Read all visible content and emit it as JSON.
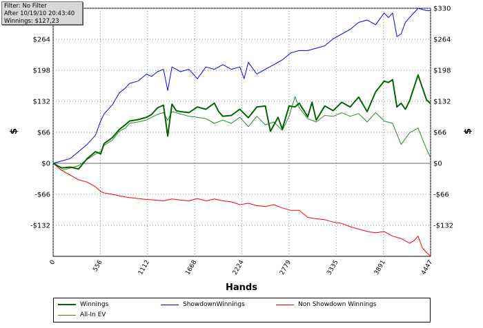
{
  "info_box": {
    "filter": "Filter: No Filter",
    "after": "After 10/19/10 20:43:40",
    "winnings": "Winnings: $127,23"
  },
  "colors": {
    "winnings": "#006400",
    "showdown": "#0000ff",
    "non_showdown": "#ff0000",
    "allin_ev": "#228b22",
    "grid": "#808080",
    "zero_line": "#606060"
  },
  "chart_data": {
    "type": "line",
    "title": "",
    "xlabel": "Hands",
    "ylabel": "$",
    "xlim": [
      0,
      4447
    ],
    "ylim": [
      -198,
      330
    ],
    "x_ticks": [
      0,
      556,
      1112,
      1668,
      2224,
      2779,
      3335,
      3891,
      4447
    ],
    "x_tick_labels": [
      "0",
      "556",
      "1112",
      "1668",
      "2224",
      "2779",
      "3335",
      "3891",
      "4447"
    ],
    "y_ticks": [
      330,
      264,
      198,
      132,
      66,
      0,
      -66,
      -132
    ],
    "y_tick_labels": [
      "$330",
      "$264",
      "$198",
      "$132",
      "$66",
      "$0",
      "-$66",
      "-$132"
    ],
    "grid": true,
    "legend_position": "bottom",
    "series": [
      {
        "name": "Winnings",
        "x": [
          0,
          100,
          200,
          300,
          400,
          500,
          560,
          600,
          700,
          780,
          850,
          900,
          1000,
          1100,
          1160,
          1230,
          1300,
          1350,
          1400,
          1450,
          1500,
          1600,
          1700,
          1800,
          1900,
          1950,
          2000,
          2100,
          2200,
          2300,
          2400,
          2500,
          2560,
          2650,
          2700,
          2780,
          2850,
          2900,
          3000,
          3050,
          3100,
          3200,
          3300,
          3400,
          3500,
          3600,
          3700,
          3800,
          3900,
          3950,
          4000,
          4050,
          4100,
          4150,
          4200,
          4300,
          4400,
          4447
        ],
        "values": [
          0,
          -10,
          -8,
          -12,
          10,
          25,
          20,
          42,
          55,
          72,
          82,
          90,
          93,
          98,
          104,
          118,
          124,
          58,
          126,
          112,
          110,
          108,
          120,
          115,
          128,
          110,
          100,
          102,
          115,
          97,
          120,
          122,
          68,
          98,
          73,
          122,
          120,
          128,
          99,
          130,
          92,
          122,
          112,
          130,
          120,
          141,
          110,
          152,
          175,
          172,
          178,
          120,
          128,
          115,
          133,
          188,
          135,
          127
        ]
      },
      {
        "name": "ShowdownWinnings",
        "x": [
          0,
          100,
          200,
          300,
          400,
          500,
          560,
          600,
          700,
          780,
          850,
          900,
          1000,
          1100,
          1160,
          1230,
          1300,
          1350,
          1400,
          1500,
          1600,
          1700,
          1800,
          1900,
          2000,
          2100,
          2200,
          2250,
          2300,
          2400,
          2500,
          2600,
          2700,
          2800,
          2900,
          3000,
          3100,
          3200,
          3300,
          3400,
          3500,
          3600,
          3700,
          3800,
          3900,
          3950,
          4000,
          4050,
          4100,
          4150,
          4200,
          4300,
          4400,
          4447
        ],
        "values": [
          0,
          5,
          10,
          25,
          40,
          60,
          90,
          105,
          125,
          150,
          160,
          170,
          175,
          190,
          185,
          195,
          200,
          155,
          205,
          195,
          200,
          180,
          205,
          200,
          210,
          200,
          205,
          180,
          215,
          190,
          200,
          210,
          220,
          235,
          240,
          240,
          245,
          250,
          265,
          275,
          285,
          300,
          305,
          295,
          320,
          310,
          320,
          270,
          275,
          300,
          310,
          330,
          325,
          325
        ]
      },
      {
        "name": "Non Showdown Winnings",
        "x": [
          0,
          100,
          200,
          300,
          400,
          500,
          560,
          600,
          700,
          800,
          900,
          1000,
          1100,
          1200,
          1300,
          1400,
          1500,
          1600,
          1700,
          1800,
          1900,
          2000,
          2100,
          2200,
          2300,
          2400,
          2500,
          2600,
          2700,
          2800,
          2900,
          3000,
          3100,
          3200,
          3300,
          3400,
          3500,
          3600,
          3700,
          3800,
          3900,
          4000,
          4100,
          4200,
          4250,
          4300,
          4350,
          4400,
          4447
        ],
        "values": [
          0,
          -15,
          -25,
          -35,
          -40,
          -50,
          -60,
          -63,
          -66,
          -70,
          -73,
          -75,
          -77,
          -78,
          -80,
          -76,
          -78,
          -80,
          -75,
          -80,
          -76,
          -80,
          -82,
          -88,
          -85,
          -90,
          -92,
          -88,
          -95,
          -100,
          -100,
          -115,
          -118,
          -120,
          -125,
          -128,
          -135,
          -140,
          -145,
          -148,
          -145,
          -155,
          -160,
          -170,
          -165,
          -155,
          -180,
          -190,
          -198
        ]
      },
      {
        "name": "All-In EV",
        "x": [
          0,
          100,
          200,
          300,
          400,
          500,
          560,
          600,
          700,
          780,
          850,
          900,
          1000,
          1100,
          1160,
          1230,
          1300,
          1350,
          1400,
          1500,
          1600,
          1700,
          1800,
          1900,
          2000,
          2100,
          2200,
          2300,
          2400,
          2500,
          2600,
          2700,
          2780,
          2850,
          2900,
          3000,
          3100,
          3200,
          3300,
          3400,
          3500,
          3600,
          3700,
          3800,
          3900,
          4000,
          4100,
          4200,
          4300,
          4400,
          4447
        ],
        "values": [
          0,
          -15,
          -10,
          -5,
          8,
          20,
          25,
          38,
          50,
          68,
          75,
          85,
          88,
          92,
          98,
          104,
          108,
          92,
          110,
          105,
          100,
          98,
          95,
          85,
          92,
          85,
          98,
          78,
          100,
          82,
          88,
          70,
          100,
          142,
          118,
          95,
          88,
          102,
          100,
          108,
          100,
          106,
          88,
          108,
          90,
          85,
          40,
          65,
          75,
          30,
          12
        ]
      }
    ]
  },
  "legend": {
    "winnings": "Winnings",
    "showdown": "ShowdownWinnings",
    "non_showdown": "Non Showdown Winnings",
    "allin_ev": "All-In EV"
  }
}
